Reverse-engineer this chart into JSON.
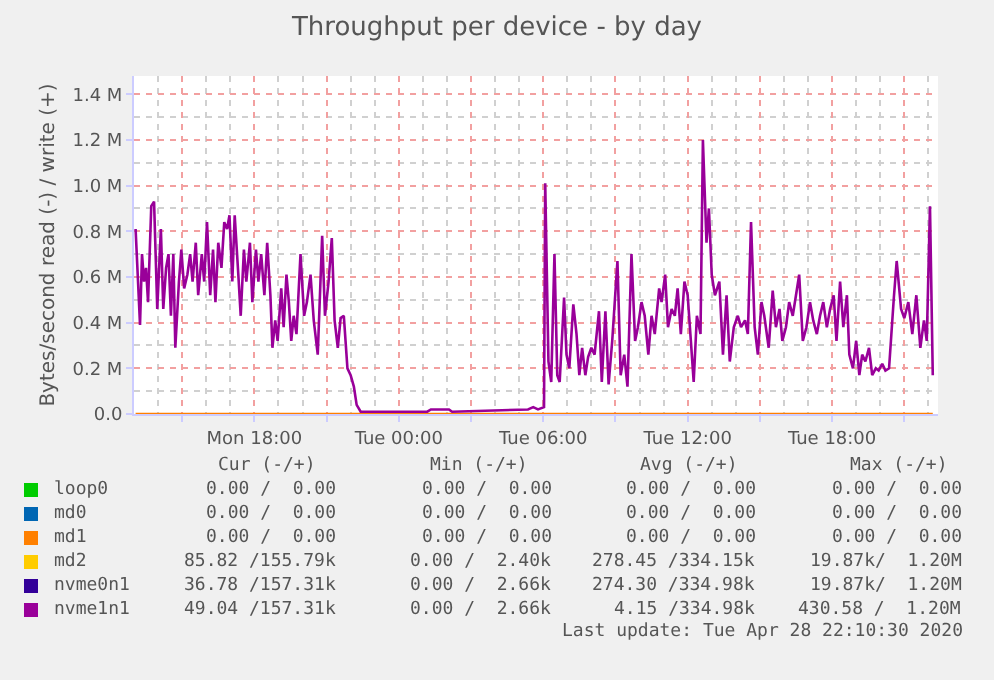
{
  "chart_data": {
    "type": "line",
    "title": "Throughput per device - by day",
    "ylabel": "Bytes/second read (-) / write (+)",
    "xlim": [
      "2020-04-27T13:00",
      "2020-04-28T22:24"
    ],
    "xticks": [
      {
        "value": "2020-04-27T15:00",
        "label": null
      },
      {
        "value": "2020-04-27T18:00",
        "label": "Mon 18:00"
      },
      {
        "value": "2020-04-27T21:00",
        "label": null
      },
      {
        "value": "2020-04-28T00:00",
        "label": "Tue 00:00"
      },
      {
        "value": "2020-04-28T03:00",
        "label": null
      },
      {
        "value": "2020-04-28T06:00",
        "label": "Tue 06:00"
      },
      {
        "value": "2020-04-28T09:00",
        "label": null
      },
      {
        "value": "2020-04-28T12:00",
        "label": "Tue 12:00"
      },
      {
        "value": "2020-04-28T15:00",
        "label": null
      },
      {
        "value": "2020-04-28T18:00",
        "label": "Tue 18:00"
      },
      {
        "value": "2020-04-28T21:00",
        "label": null
      }
    ],
    "ylim": [
      0,
      1.48
    ],
    "yticks": [
      {
        "value": 0,
        "label": "0.0"
      },
      {
        "value": 0.2,
        "label": "0.2 M"
      },
      {
        "value": 0.4,
        "label": "0.4 M"
      },
      {
        "value": 0.6,
        "label": "0.6 M"
      },
      {
        "value": 0.8,
        "label": "0.8 M"
      },
      {
        "value": 1.0,
        "label": "1.0 M"
      },
      {
        "value": 1.2,
        "label": "1.2 M"
      },
      {
        "value": 1.4,
        "label": "1.4 M"
      }
    ],
    "grid": true,
    "legend": "bottom",
    "series": [
      {
        "name": "loop0",
        "color": "#00cc00"
      },
      {
        "name": "md0",
        "color": "#0066b3"
      },
      {
        "name": "md1",
        "color": "#ff8000",
        "x": [
          "2020-04-27T13:04",
          "2020-04-28T22:11"
        ],
        "values": [
          0,
          0
        ]
      },
      {
        "name": "md2",
        "color": "#ffcc00"
      },
      {
        "name": "nvme0n1",
        "color": "#330099"
      },
      {
        "name": "nvme1n1",
        "color": "#990099",
        "x": [
          "2020-04-27T13:04",
          "2020-04-27T13:10",
          "2020-04-27T13:15",
          "2020-04-27T13:20",
          "2020-04-27T13:25",
          "2020-04-27T13:30",
          "2020-04-27T13:35",
          "2020-04-27T13:43",
          "2020-04-27T13:50",
          "2020-04-27T13:58",
          "2020-04-27T14:07",
          "2020-04-27T14:13",
          "2020-04-27T14:20",
          "2020-04-27T14:26",
          "2020-04-27T14:32",
          "2020-04-27T14:38",
          "2020-04-27T14:43",
          "2020-04-27T14:52",
          "2020-04-27T14:58",
          "2020-04-27T15:05",
          "2020-04-27T15:13",
          "2020-04-27T15:20",
          "2020-04-27T15:26",
          "2020-04-27T15:34",
          "2020-04-27T15:40",
          "2020-04-27T15:49",
          "2020-04-27T15:55",
          "2020-04-27T16:02",
          "2020-04-27T16:10",
          "2020-04-27T16:17",
          "2020-04-27T16:23",
          "2020-04-27T16:30",
          "2020-04-27T16:38",
          "2020-04-27T16:45",
          "2020-04-27T16:52",
          "2020-04-27T16:58",
          "2020-04-27T17:05",
          "2020-04-27T17:11",
          "2020-04-27T17:20",
          "2020-04-27T17:26",
          "2020-04-27T17:34",
          "2020-04-27T17:40",
          "2020-04-27T17:49",
          "2020-04-27T17:55",
          "2020-04-27T18:04",
          "2020-04-27T18:10",
          "2020-04-27T18:17",
          "2020-04-27T18:25",
          "2020-04-27T18:32",
          "2020-04-27T18:40",
          "2020-04-27T18:45",
          "2020-04-27T18:52",
          "2020-04-27T18:58",
          "2020-04-27T19:07",
          "2020-04-27T19:13",
          "2020-04-27T19:20",
          "2020-04-27T19:26",
          "2020-04-27T19:32",
          "2020-04-27T19:38",
          "2020-04-27T19:45",
          "2020-04-27T19:55",
          "2020-04-27T20:04",
          "2020-04-27T20:11",
          "2020-04-27T20:20",
          "2020-04-27T20:28",
          "2020-04-27T20:38",
          "2020-04-27T20:49",
          "2020-04-27T20:56",
          "2020-04-27T21:05",
          "2020-04-27T21:13",
          "2020-04-27T21:20",
          "2020-04-27T21:28",
          "2020-04-27T21:35",
          "2020-04-27T21:43",
          "2020-04-27T21:52",
          "2020-04-27T22:00",
          "2020-04-27T22:08",
          "2020-04-27T22:15",
          "2020-04-27T22:25",
          "2020-04-27T22:58",
          "2020-04-28T01:11",
          "2020-04-28T01:20",
          "2020-04-28T02:05",
          "2020-04-28T02:13",
          "2020-04-28T05:22",
          "2020-04-28T05:35",
          "2020-04-28T05:47",
          "2020-04-28T06:02",
          "2020-04-28T06:05",
          "2020-04-28T06:13",
          "2020-04-28T06:20",
          "2020-04-28T06:28",
          "2020-04-28T06:35",
          "2020-04-28T06:41",
          "2020-04-28T06:52",
          "2020-04-28T06:58",
          "2020-04-28T07:05",
          "2020-04-28T07:15",
          "2020-04-28T07:23",
          "2020-04-28T07:30",
          "2020-04-28T07:37",
          "2020-04-28T07:45",
          "2020-04-28T07:52",
          "2020-04-28T08:00",
          "2020-04-28T08:08",
          "2020-04-28T08:19",
          "2020-04-28T08:26",
          "2020-04-28T08:35",
          "2020-04-28T08:43",
          "2020-04-28T08:52",
          "2020-04-28T09:05",
          "2020-04-28T09:13",
          "2020-04-28T09:22",
          "2020-04-28T09:30",
          "2020-04-28T09:40",
          "2020-04-28T09:49",
          "2020-04-28T09:56",
          "2020-04-28T10:05",
          "2020-04-28T10:13",
          "2020-04-28T10:22",
          "2020-04-28T10:30",
          "2020-04-28T10:38",
          "2020-04-28T10:49",
          "2020-04-28T10:55",
          "2020-04-28T11:04",
          "2020-04-28T11:11",
          "2020-04-28T11:20",
          "2020-04-28T11:28",
          "2020-04-28T11:35",
          "2020-04-28T11:43",
          "2020-04-28T11:52",
          "2020-04-28T12:00",
          "2020-04-28T12:08",
          "2020-04-28T12:15",
          "2020-04-28T12:23",
          "2020-04-28T12:32",
          "2020-04-28T12:38",
          "2020-04-28T12:47",
          "2020-04-28T12:53",
          "2020-04-28T13:00",
          "2020-04-28T13:08",
          "2020-04-28T13:19",
          "2020-04-28T13:28",
          "2020-04-28T13:37",
          "2020-04-28T13:45",
          "2020-04-28T13:55",
          "2020-04-28T14:05",
          "2020-04-28T14:13",
          "2020-04-28T14:23",
          "2020-04-28T14:30",
          "2020-04-28T14:38",
          "2020-04-28T14:47",
          "2020-04-28T14:55",
          "2020-04-28T15:04",
          "2020-04-28T15:11",
          "2020-04-28T15:22",
          "2020-04-28T15:32",
          "2020-04-28T15:40",
          "2020-04-28T15:49",
          "2020-04-28T15:56",
          "2020-04-28T16:05",
          "2020-04-28T16:13",
          "2020-04-28T16:22",
          "2020-04-28T16:30",
          "2020-04-28T16:38",
          "2020-04-28T16:47",
          "2020-04-28T16:56",
          "2020-04-28T17:05",
          "2020-04-28T17:13",
          "2020-04-28T17:22",
          "2020-04-28T17:30",
          "2020-04-28T17:38",
          "2020-04-28T17:47",
          "2020-04-28T17:55",
          "2020-04-28T18:04",
          "2020-04-28T18:11",
          "2020-04-28T18:20",
          "2020-04-28T18:28",
          "2020-04-28T18:37",
          "2020-04-28T18:43",
          "2020-04-28T18:52",
          "2020-04-28T19:00",
          "2020-04-28T19:08",
          "2020-04-28T19:15",
          "2020-04-28T19:23",
          "2020-04-28T19:32",
          "2020-04-28T19:40",
          "2020-04-28T19:49",
          "2020-04-28T19:56",
          "2020-04-28T20:05",
          "2020-04-28T20:13",
          "2020-04-28T20:22",
          "2020-04-28T20:34",
          "2020-04-28T20:41",
          "2020-04-28T20:52",
          "2020-04-28T21:00",
          "2020-04-28T21:10",
          "2020-04-28T21:20",
          "2020-04-28T21:30",
          "2020-04-28T21:40",
          "2020-04-28T21:49",
          "2020-04-28T21:56",
          "2020-04-28T22:04",
          "2020-04-28T22:11"
        ],
        "values": [
          0.81,
          0.58,
          0.39,
          0.7,
          0.58,
          0.64,
          0.49,
          0.91,
          0.93,
          0.46,
          0.81,
          0.46,
          0.64,
          0.7,
          0.43,
          0.7,
          0.29,
          0.58,
          0.72,
          0.55,
          0.61,
          0.7,
          0.58,
          0.75,
          0.52,
          0.7,
          0.58,
          0.84,
          0.52,
          0.72,
          0.49,
          0.75,
          0.64,
          0.84,
          0.81,
          0.87,
          0.58,
          0.87,
          0.61,
          0.43,
          0.72,
          0.58,
          0.75,
          0.49,
          0.72,
          0.58,
          0.7,
          0.52,
          0.75,
          0.52,
          0.29,
          0.41,
          0.32,
          0.55,
          0.38,
          0.61,
          0.49,
          0.32,
          0.43,
          0.35,
          0.7,
          0.43,
          0.49,
          0.61,
          0.41,
          0.26,
          0.78,
          0.43,
          0.58,
          0.77,
          0.41,
          0.29,
          0.42,
          0.43,
          0.2,
          0.17,
          0.12,
          0.04,
          0.01,
          0.01,
          0.01,
          0.02,
          0.02,
          0.01,
          0.02,
          0.03,
          0.02,
          0.03,
          1.01,
          0.23,
          0.14,
          0.7,
          0.17,
          0.14,
          0.51,
          0.26,
          0.2,
          0.48,
          0.35,
          0.17,
          0.29,
          0.17,
          0.25,
          0.29,
          0.26,
          0.45,
          0.14,
          0.45,
          0.13,
          0.32,
          0.67,
          0.17,
          0.26,
          0.12,
          0.7,
          0.32,
          0.38,
          0.49,
          0.43,
          0.26,
          0.43,
          0.35,
          0.55,
          0.49,
          0.61,
          0.38,
          0.46,
          0.43,
          0.55,
          0.35,
          0.58,
          0.52,
          0.32,
          0.14,
          0.43,
          0.35,
          1.2,
          0.75,
          0.9,
          0.61,
          0.52,
          0.58,
          0.26,
          0.52,
          0.23,
          0.38,
          0.43,
          0.38,
          0.41,
          0.35,
          0.84,
          0.38,
          0.26,
          0.49,
          0.43,
          0.29,
          0.54,
          0.38,
          0.46,
          0.32,
          0.38,
          0.49,
          0.43,
          0.52,
          0.61,
          0.32,
          0.38,
          0.49,
          0.41,
          0.35,
          0.43,
          0.49,
          0.38,
          0.46,
          0.52,
          0.32,
          0.58,
          0.38,
          0.52,
          0.26,
          0.2,
          0.32,
          0.17,
          0.26,
          0.23,
          0.29,
          0.17,
          0.2,
          0.19,
          0.22,
          0.19,
          0.2,
          0.51,
          0.67,
          0.46,
          0.42,
          0.49,
          0.35,
          0.52,
          0.29,
          0.41,
          0.32,
          0.91,
          0.17
        ]
      }
    ],
    "annotations": [
      "Cur (-/+)",
      "Min (-/+)",
      "Avg (-/+)",
      "Max (-/+)",
      "0.00 /  0.00",
      "0.00 /  0.00",
      "0.00 /  0.00",
      "0.00 /  0.00",
      "0.00 /  0.00",
      "0.00 /  0.00",
      "0.00 /  0.00",
      "0.00 /  0.00",
      "0.00 /  0.00",
      "0.00 /  0.00",
      "0.00 /  0.00",
      "0.00 /  0.00",
      "85.82 /155.79k",
      "0.00 /  2.40k",
      "278.45 /334.15k",
      "19.87k/  1.20M",
      "36.78 /157.31k",
      "0.00 /  2.66k",
      "274.30 /334.98k",
      "19.87k/  1.20M",
      "49.04 /157.31k",
      "0.00 /  2.66k",
      "4.15 /334.98k",
      "430.58 /  1.20M",
      "Last update: Tue Apr 28 22:10:30 2020"
    ]
  }
}
